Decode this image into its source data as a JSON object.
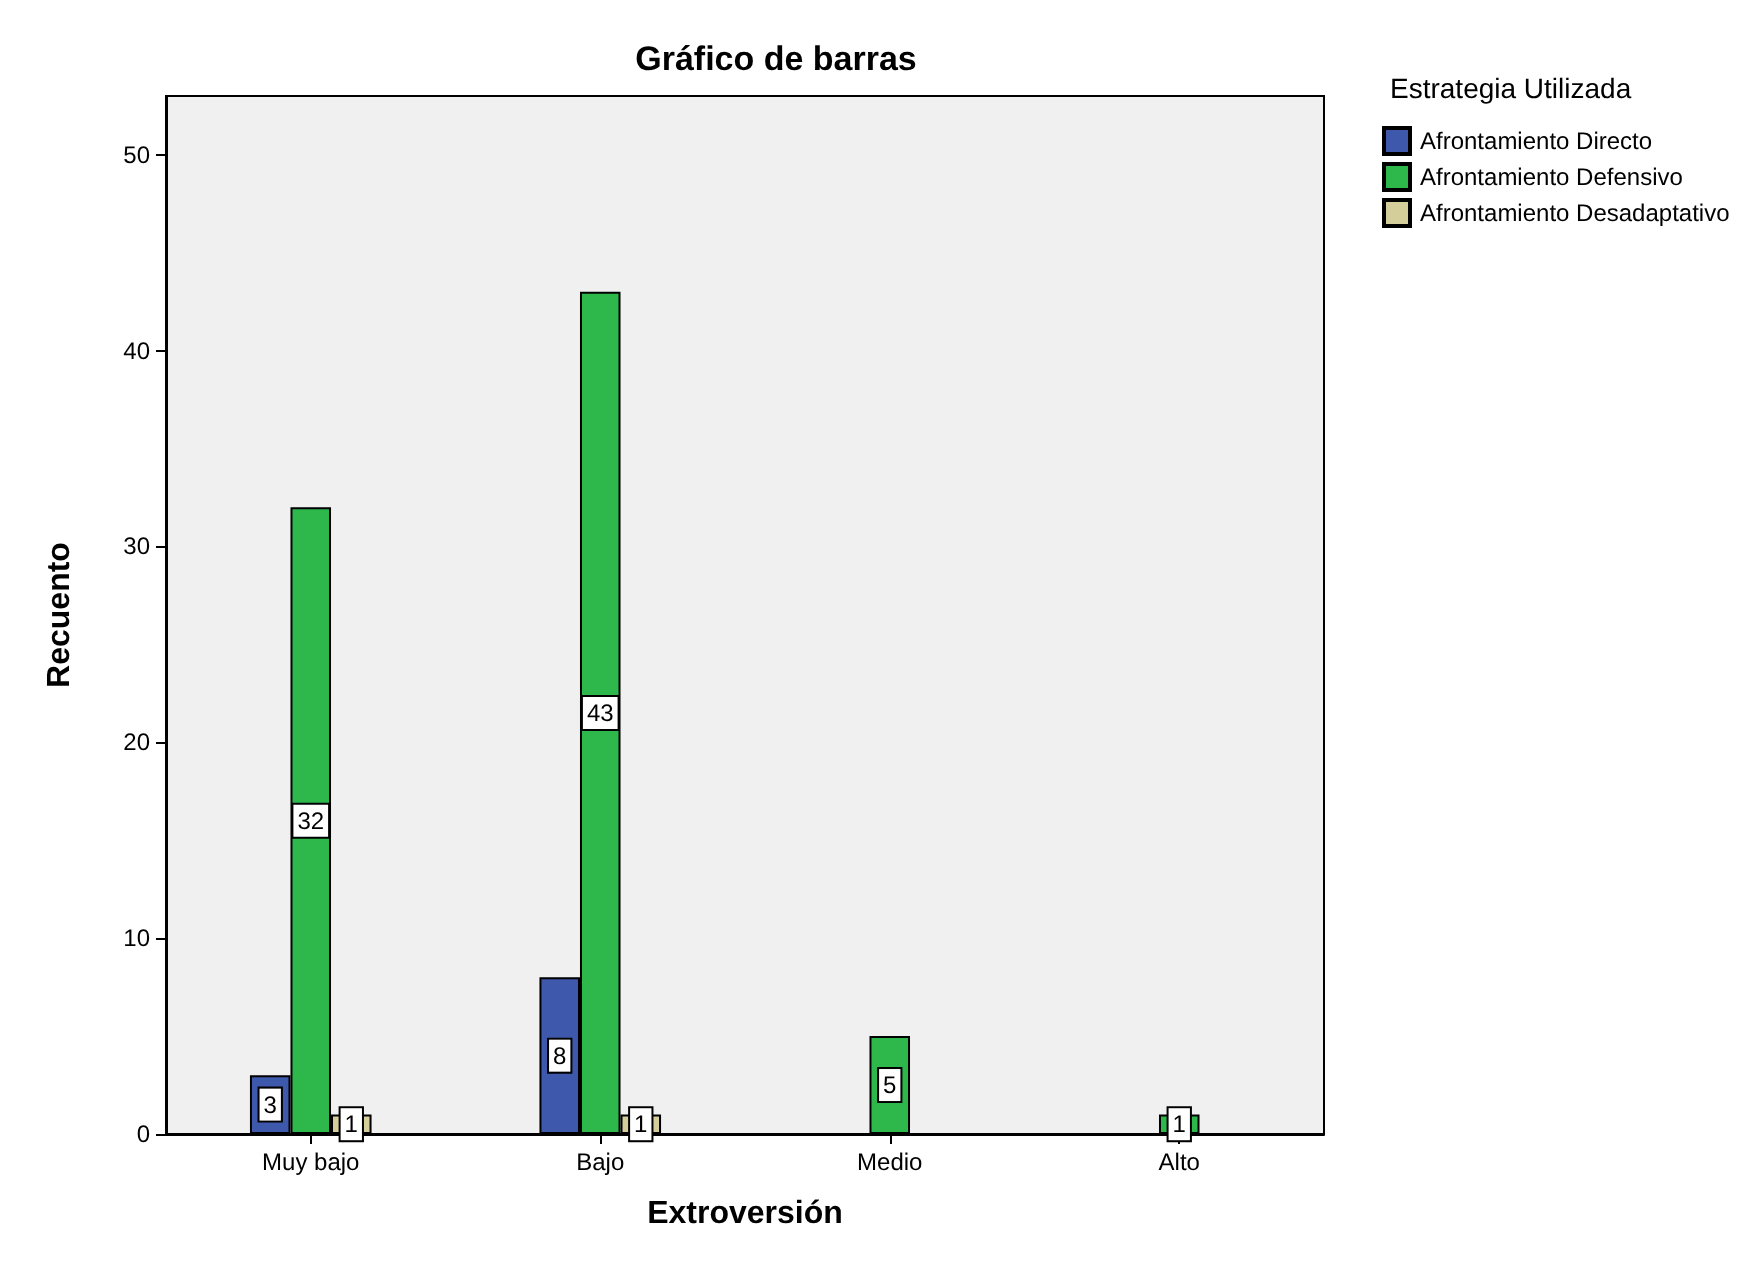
{
  "chart_data": {
    "type": "bar",
    "title": "Gráfico de barras",
    "xlabel": "Extroversión",
    "ylabel": "Recuento",
    "legend_title": "Estrategia Utilizada",
    "categories": [
      "Muy bajo",
      "Bajo",
      "Medio",
      "Alto"
    ],
    "series": [
      {
        "name": "Afrontamiento Directo",
        "color": "#3e58ac",
        "values": [
          3,
          8,
          null,
          null
        ]
      },
      {
        "name": "Afrontamiento Defensivo",
        "color": "#2eb84c",
        "values": [
          32,
          43,
          5,
          1
        ]
      },
      {
        "name": "Afrontamiento Desadaptativo",
        "color": "#d4cf9a",
        "values": [
          1,
          1,
          null,
          null
        ]
      }
    ],
    "ylim": [
      0,
      53
    ],
    "yticks": [
      0,
      10,
      20,
      30,
      40,
      50
    ],
    "grid": false,
    "legend": "top right",
    "data_labels": true
  }
}
